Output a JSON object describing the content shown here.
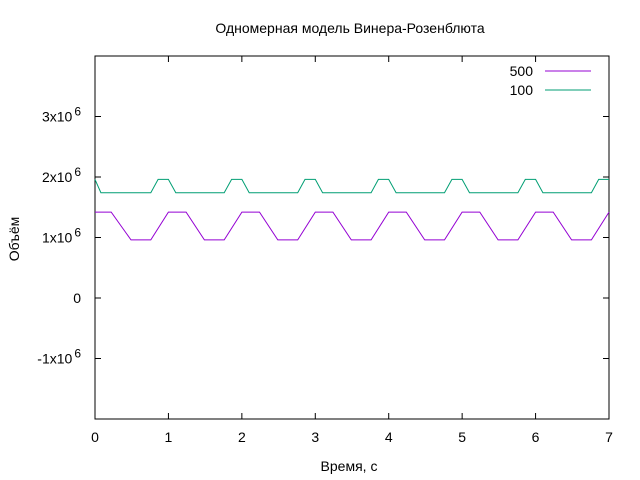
{
  "chart_data": {
    "type": "line",
    "title": "Одномерная модель Винера-Розенблюта",
    "xlabel": "Время, с",
    "ylabel": "Объём",
    "xlim": [
      0,
      7
    ],
    "ylim": [
      -2000000,
      4000000
    ],
    "x_ticks": [
      {
        "value": 0,
        "label": "0"
      },
      {
        "value": 1,
        "label": "1"
      },
      {
        "value": 2,
        "label": "2"
      },
      {
        "value": 3,
        "label": "3"
      },
      {
        "value": 4,
        "label": "4"
      },
      {
        "value": 5,
        "label": "5"
      },
      {
        "value": 6,
        "label": "6"
      },
      {
        "value": 7,
        "label": "7"
      }
    ],
    "y_ticks": [
      {
        "value": -1000000,
        "mantissa": "-1x10",
        "exp": "6"
      },
      {
        "value": 0,
        "mantissa": "0",
        "exp": ""
      },
      {
        "value": 1000000,
        "mantissa": "1x10",
        "exp": "6"
      },
      {
        "value": 2000000,
        "mantissa": "2x10",
        "exp": "6"
      },
      {
        "value": 3000000,
        "mantissa": "3x10",
        "exp": "6"
      }
    ],
    "grid": false,
    "legend_position": "top-right",
    "series": [
      {
        "name": "500",
        "color": "#9400d3",
        "x": [
          0.0,
          0.22,
          0.49,
          0.76,
          1.0,
          1.24,
          1.49,
          1.76,
          2.0,
          2.24,
          2.49,
          2.76,
          3.0,
          3.24,
          3.49,
          3.76,
          4.0,
          4.24,
          4.49,
          4.76,
          5.0,
          5.24,
          5.49,
          5.76,
          6.0,
          6.24,
          6.49,
          6.76,
          7.0
        ],
        "y": [
          1420000,
          1420000,
          960000,
          960000,
          1420000,
          1420000,
          960000,
          960000,
          1420000,
          1420000,
          960000,
          960000,
          1420000,
          1420000,
          960000,
          960000,
          1420000,
          1420000,
          960000,
          960000,
          1420000,
          1420000,
          960000,
          960000,
          1420000,
          1420000,
          960000,
          960000,
          1420000
        ]
      },
      {
        "name": "100",
        "color": "#009e73",
        "x": [
          0.0,
          0.08,
          0.76,
          0.86,
          1.0,
          1.1,
          1.76,
          1.86,
          2.0,
          2.1,
          2.76,
          2.86,
          3.0,
          3.1,
          3.76,
          3.86,
          4.0,
          4.1,
          4.76,
          4.86,
          5.0,
          5.1,
          5.76,
          5.86,
          6.0,
          6.1,
          6.76,
          6.86,
          7.0
        ],
        "y": [
          1960000,
          1740000,
          1740000,
          1960000,
          1960000,
          1740000,
          1740000,
          1960000,
          1960000,
          1740000,
          1740000,
          1960000,
          1960000,
          1740000,
          1740000,
          1960000,
          1960000,
          1740000,
          1740000,
          1960000,
          1960000,
          1740000,
          1740000,
          1960000,
          1960000,
          1740000,
          1740000,
          1960000,
          1960000
        ]
      }
    ]
  }
}
